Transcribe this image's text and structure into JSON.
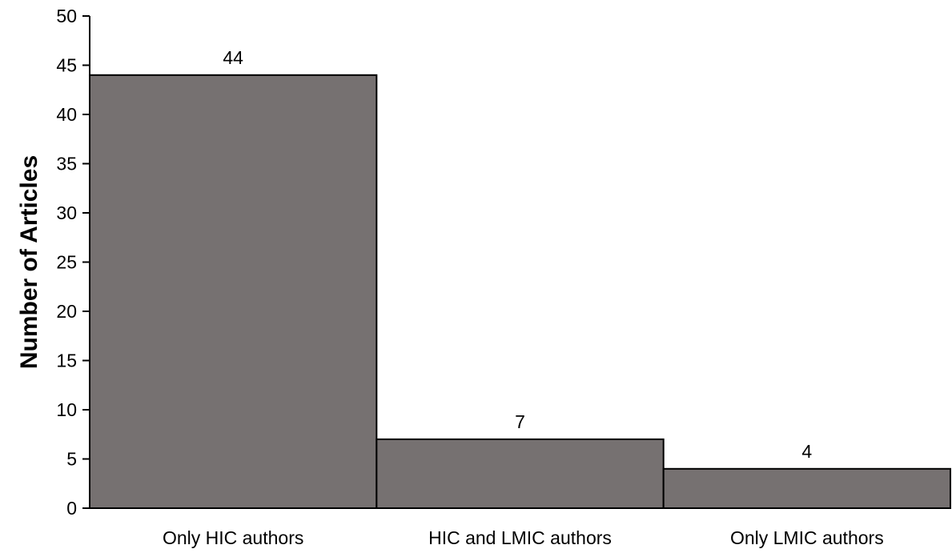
{
  "chart_data": {
    "type": "bar",
    "title": "",
    "xlabel": "",
    "ylabel": "Number of Articles",
    "categories": [
      "Only HIC authors",
      "HIC and LMIC authors",
      "Only LMIC authors"
    ],
    "values": [
      44,
      7,
      4
    ],
    "data_labels": [
      "44",
      "7",
      "4"
    ],
    "ylim": [
      0,
      50
    ],
    "yticks": [
      0,
      5,
      10,
      15,
      20,
      25,
      30,
      35,
      40,
      45,
      50
    ],
    "grid": false,
    "legend": "none",
    "bar_color": "#767171",
    "bar_edge_color": "#000000",
    "axis_color": "#000000"
  }
}
